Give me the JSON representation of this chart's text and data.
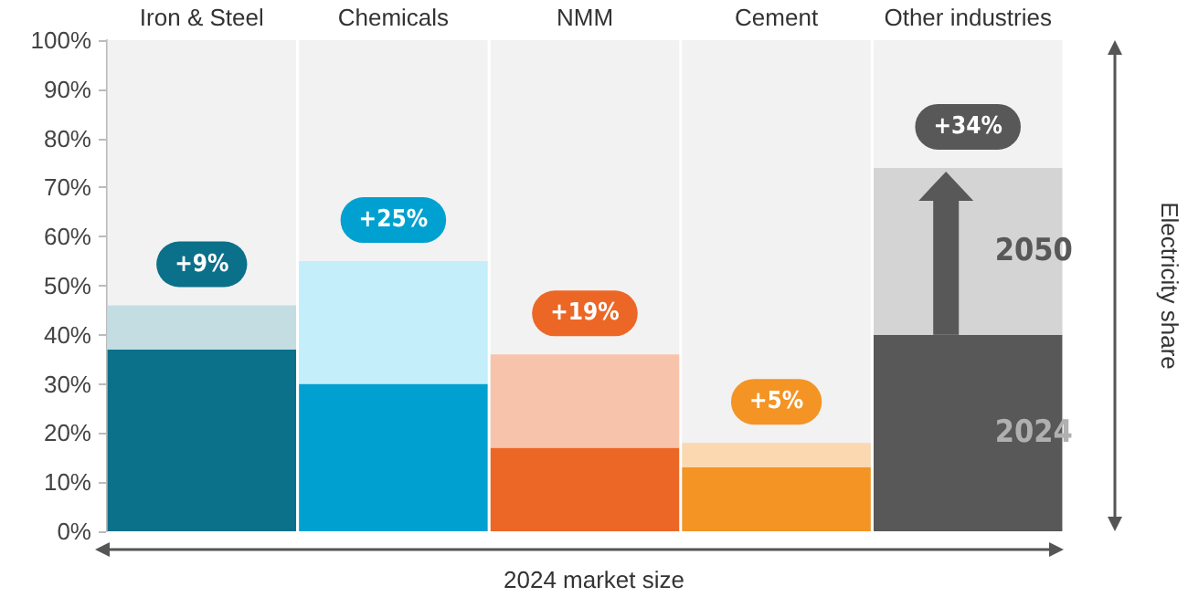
{
  "chart_data": {
    "type": "bar",
    "stacked": true,
    "xlabel": "2024 market size",
    "ylabel": "Electricity share",
    "categories": [
      "Iron & Steel",
      "Chemicals",
      "NMM",
      "Cement",
      "Other industries"
    ],
    "series": [
      {
        "name": "2024",
        "colors": [
          "#0b7089",
          "#00a1d0",
          "#ec6726",
          "#f39425",
          "#585858"
        ],
        "values": [
          37,
          30,
          17,
          13,
          40
        ]
      },
      {
        "name": "2050",
        "colors": [
          "#c3dde3",
          "#c3eefa",
          "#f7c4ab",
          "#fbd8b0",
          "#d4d4d4"
        ],
        "values": [
          9,
          25,
          19,
          5,
          34
        ],
        "value_labels": [
          "+9%",
          "+25%",
          "+19%",
          "+5%",
          "+34%"
        ]
      }
    ],
    "ylim": [
      0,
      100
    ],
    "yticks": [
      {
        "value": 0,
        "label": "0%"
      },
      {
        "value": 10,
        "label": "10%"
      },
      {
        "value": 20,
        "label": "20%"
      },
      {
        "value": 30,
        "label": "30%"
      },
      {
        "value": 40,
        "label": "40%"
      },
      {
        "value": 50,
        "label": "50%"
      },
      {
        "value": 60,
        "label": "60%"
      },
      {
        "value": 70,
        "label": "70%"
      },
      {
        "value": 80,
        "label": "80%"
      },
      {
        "value": 90,
        "label": "90%"
      },
      {
        "value": 100,
        "label": "100%"
      }
    ],
    "grid": false,
    "legend": false
  }
}
